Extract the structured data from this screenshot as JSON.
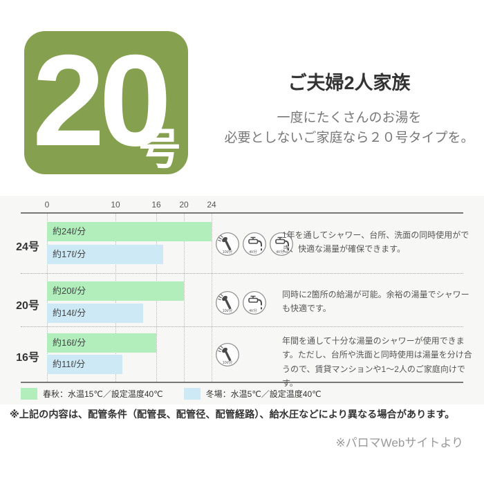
{
  "hero": {
    "badge_number": "20",
    "badge_suffix": "号",
    "title": "ご夫婦2人家族",
    "subtitle_line1": "一度にたくさんのお湯を",
    "subtitle_line2": "必要としないご家庭なら２０号タイプを。"
  },
  "chart": {
    "axis_ticks": [
      0,
      10,
      16,
      20,
      24
    ],
    "rows": [
      {
        "label": "24号",
        "spring_value": 24,
        "spring_label": "約24ℓ/分",
        "winter_value": 17,
        "winter_label": "約17ℓ/分",
        "icons": [
          "shower",
          "faucet",
          "faucet"
        ],
        "description": "1年を通してシャワー、台所、洗面の同時使用ができ、快適な湯量が確保できます。"
      },
      {
        "label": "20号",
        "spring_value": 20,
        "spring_label": "約20ℓ/分",
        "winter_value": 14,
        "winter_label": "約14ℓ/分",
        "icons": [
          "shower",
          "faucet"
        ],
        "description": "同時に2箇所の給湯が可能。余裕の湯量でシャワーも快適です。"
      },
      {
        "label": "16号",
        "spring_value": 16,
        "spring_label": "約16ℓ/分",
        "winter_value": 11,
        "winter_label": "約11ℓ/分",
        "icons": [
          "shower"
        ],
        "description": "年間を通して十分な湯量のシャワーが使用できます。ただし、台所や洗面と同時使用は湯量を分け合うので、賃貸マンションや1～2人のご家庭向けです。"
      }
    ],
    "legend": [
      {
        "label": "春秋：水温15℃／設定温度40℃",
        "color": "#b1eebb"
      },
      {
        "label": "冬場：水温5℃／設定温度40℃",
        "color": "#cde9f6"
      }
    ]
  },
  "icon_captions": {
    "shower": "10ℓ/分",
    "faucet": "4ℓ/分"
  },
  "notes": {
    "disclaimer": "※上記の内容は、配管条件（配管長、配管径、配管経路）、給水圧などにより異なる場合があります。",
    "source": "※パロマWebサイトより"
  },
  "colors": {
    "badge_green": "#85a04e",
    "bar_spring_green": "#b1eebb",
    "bar_winter_blue": "#cde9f6",
    "chart_background": "#f7f8f6",
    "axis_gray": "#777777"
  },
  "chart_data": {
    "type": "bar",
    "orientation": "horizontal",
    "categories": [
      "24号",
      "20号",
      "16号"
    ],
    "series": [
      {
        "name": "春秋：水温15℃／設定温度40℃",
        "values": [
          24,
          20,
          16
        ],
        "bar_labels": [
          "約24ℓ/分",
          "約20ℓ/分",
          "約16ℓ/分"
        ],
        "color": "#b1eebb"
      },
      {
        "name": "冬場：水温5℃／設定温度40℃",
        "values": [
          17,
          14,
          11
        ],
        "bar_labels": [
          "約17ℓ/分",
          "約14ℓ/分",
          "約11ℓ/分"
        ],
        "color": "#cde9f6"
      }
    ],
    "x_ticks": [
      0,
      10,
      16,
      20,
      24
    ],
    "xlim": [
      0,
      24
    ],
    "unit": "ℓ/分",
    "grid": "vertical-dotted-at-ticks",
    "legend_position": "bottom"
  }
}
